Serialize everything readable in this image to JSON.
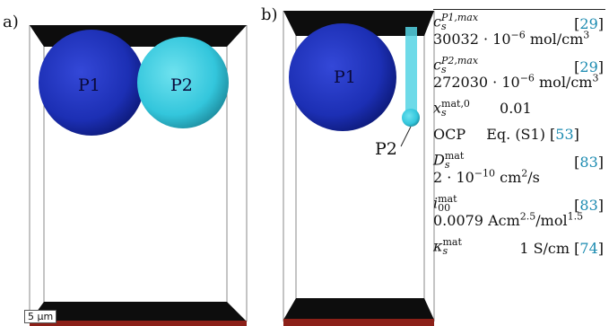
{
  "panels": {
    "a": "a)",
    "b": "b)"
  },
  "particles": {
    "p1": "P1",
    "p2": "P2"
  },
  "scale_bar": "5 μm",
  "colors": {
    "p1": "#1c2fb4",
    "p2": "#33c6dc",
    "plate": "#0d0d0d",
    "collector": "#8c2018"
  },
  "table": {
    "rows": [
      {
        "symbol": "c",
        "sub": "s",
        "sup": "P1,max",
        "ref": "29",
        "value_main": "30032 · 10",
        "value_exp": "−6",
        "value_unit": " mol/cm",
        "unit_exp": "3"
      },
      {
        "symbol": "c",
        "sub": "s",
        "sup": "P2,max",
        "ref": "29",
        "value_main": "272030 · 10",
        "value_exp": "−6",
        "value_unit": " mol/cm",
        "unit_exp": "3"
      },
      {
        "symbol": "x",
        "sub": "s",
        "sup": "mat,0",
        "value": "0.01"
      },
      {
        "symbol": "OCP",
        "value": "Eq. (S1)",
        "ref": "53"
      },
      {
        "symbol": "D",
        "sub": "s",
        "sup": "mat",
        "ref": "83",
        "value_main": "2 · 10",
        "value_exp": "−10",
        "value_unit": " cm",
        "unit_exp": "2",
        "value_tail": "/s"
      },
      {
        "symbol": "i",
        "sub": "00",
        "sup": "mat",
        "ref": "83",
        "value_main": "0.0079 Acm",
        "value_exp": "2.5",
        "value_unit": "/mol",
        "unit_exp": "1.5"
      },
      {
        "symbol": "κ",
        "sub": "s",
        "sup": "mat",
        "value": "1 S/cm",
        "ref": "74"
      }
    ]
  }
}
